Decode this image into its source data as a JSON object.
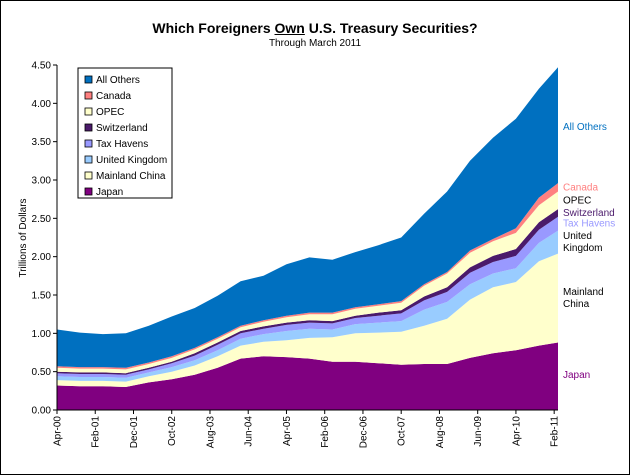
{
  "chart_data": {
    "type": "area",
    "stacked": true,
    "title_parts": [
      "Which Foreigners ",
      "Own",
      " U.S. Treasury Securities?"
    ],
    "subtitle": "Through March 2011",
    "xlabel": "",
    "ylabel": "Trillions of Dollars",
    "ylim": [
      0,
      4.5
    ],
    "yticks": [
      "0.00",
      "0.50",
      "1.00",
      "1.50",
      "2.00",
      "2.50",
      "3.00",
      "3.50",
      "4.00",
      "4.50"
    ],
    "x_tick_labels": [
      "Apr-00",
      "Feb-01",
      "Dec-01",
      "Oct-02",
      "Aug-03",
      "Jun-04",
      "Apr-05",
      "Feb-06",
      "Dec-06",
      "Oct-07",
      "Aug-08",
      "Jun-09",
      "Apr-10",
      "Feb-11"
    ],
    "x": [
      "Apr-00",
      "Oct-00",
      "Apr-01",
      "Oct-01",
      "Apr-02",
      "Oct-02",
      "Apr-03",
      "Oct-03",
      "Apr-04",
      "Oct-04",
      "Apr-05",
      "Oct-05",
      "Apr-06",
      "Oct-06",
      "Apr-07",
      "Oct-07",
      "Apr-08",
      "Oct-08",
      "Apr-09",
      "Oct-09",
      "Apr-10",
      "Oct-10",
      "Mar-11"
    ],
    "grid": false,
    "legend_position": "top-left",
    "series": [
      {
        "name": "Japan",
        "color": "#800080",
        "values": [
          0.32,
          0.31,
          0.31,
          0.3,
          0.36,
          0.4,
          0.46,
          0.55,
          0.67,
          0.7,
          0.69,
          0.67,
          0.63,
          0.63,
          0.61,
          0.59,
          0.6,
          0.6,
          0.68,
          0.74,
          0.78,
          0.84,
          0.88
        ]
      },
      {
        "name": "Mainland China",
        "color": "#FFFFCC",
        "values": [
          0.07,
          0.07,
          0.07,
          0.07,
          0.08,
          0.1,
          0.12,
          0.15,
          0.17,
          0.19,
          0.22,
          0.27,
          0.32,
          0.37,
          0.4,
          0.43,
          0.5,
          0.59,
          0.76,
          0.86,
          0.89,
          1.1,
          1.16
        ]
      },
      {
        "name": "United Kingdom",
        "color": "#99CCFF",
        "values": [
          0.05,
          0.05,
          0.05,
          0.05,
          0.05,
          0.06,
          0.07,
          0.08,
          0.09,
          0.1,
          0.12,
          0.12,
          0.1,
          0.12,
          0.13,
          0.14,
          0.21,
          0.22,
          0.2,
          0.18,
          0.18,
          0.24,
          0.3
        ]
      },
      {
        "name": "Tax Havens",
        "color": "#9999FF",
        "values": [
          0.04,
          0.04,
          0.04,
          0.04,
          0.04,
          0.05,
          0.06,
          0.07,
          0.07,
          0.07,
          0.08,
          0.08,
          0.08,
          0.08,
          0.09,
          0.1,
          0.12,
          0.13,
          0.15,
          0.15,
          0.16,
          0.17,
          0.18
        ]
      },
      {
        "name": "Switzerland",
        "color": "#4B1A6B",
        "values": [
          0.02,
          0.02,
          0.02,
          0.02,
          0.02,
          0.02,
          0.03,
          0.03,
          0.03,
          0.03,
          0.03,
          0.03,
          0.03,
          0.03,
          0.04,
          0.04,
          0.05,
          0.06,
          0.07,
          0.08,
          0.09,
          0.1,
          0.1
        ]
      },
      {
        "name": "OPEC",
        "color": "#FFFFCC",
        "values": [
          0.05,
          0.05,
          0.05,
          0.05,
          0.05,
          0.05,
          0.05,
          0.05,
          0.05,
          0.06,
          0.07,
          0.08,
          0.09,
          0.09,
          0.09,
          0.1,
          0.14,
          0.18,
          0.19,
          0.19,
          0.21,
          0.22,
          0.23
        ]
      },
      {
        "name": "Canada",
        "color": "#FF8080",
        "values": [
          0.02,
          0.02,
          0.02,
          0.02,
          0.02,
          0.02,
          0.02,
          0.02,
          0.02,
          0.02,
          0.02,
          0.02,
          0.02,
          0.02,
          0.02,
          0.02,
          0.02,
          0.02,
          0.03,
          0.03,
          0.06,
          0.1,
          0.11
        ]
      },
      {
        "name": "All Others",
        "color": "#0070C0",
        "values": [
          0.48,
          0.45,
          0.43,
          0.45,
          0.48,
          0.52,
          0.52,
          0.54,
          0.58,
          0.58,
          0.67,
          0.72,
          0.69,
          0.72,
          0.77,
          0.83,
          0.92,
          1.05,
          1.17,
          1.32,
          1.43,
          1.42,
          1.51
        ]
      }
    ],
    "right_labels": [
      {
        "series": "All Others",
        "text": [
          "All Others"
        ],
        "color": "#0070C0"
      },
      {
        "series": "Canada",
        "text": [
          "Canada"
        ],
        "color": "#FF8080"
      },
      {
        "series": "OPEC",
        "text": [
          "OPEC"
        ],
        "color": "#000000"
      },
      {
        "series": "Switzerland",
        "text": [
          "Switzerland"
        ],
        "color": "#4B1A6B"
      },
      {
        "series": "Tax Havens",
        "text": [
          "Tax Havens"
        ],
        "color": "#9999FF"
      },
      {
        "series": "United Kingdom",
        "text": [
          "United",
          "Kingdom"
        ],
        "color": "#000000"
      },
      {
        "series": "Mainland China",
        "text": [
          "Mainland",
          "China"
        ],
        "color": "#000000"
      },
      {
        "series": "Japan",
        "text": [
          "Japan"
        ],
        "color": "#800080"
      }
    ],
    "legend_entries": [
      {
        "name": "All Others",
        "color": "#0070C0"
      },
      {
        "name": "Canada",
        "color": "#FF8080"
      },
      {
        "name": "OPEC",
        "color": "#FFFFCC"
      },
      {
        "name": "Switzerland",
        "color": "#4B1A6B"
      },
      {
        "name": "Tax Havens",
        "color": "#9999FF"
      },
      {
        "name": "United Kingdom",
        "color": "#99CCFF"
      },
      {
        "name": "Mainland China",
        "color": "#FFFFCC"
      },
      {
        "name": "Japan",
        "color": "#800080"
      }
    ]
  }
}
